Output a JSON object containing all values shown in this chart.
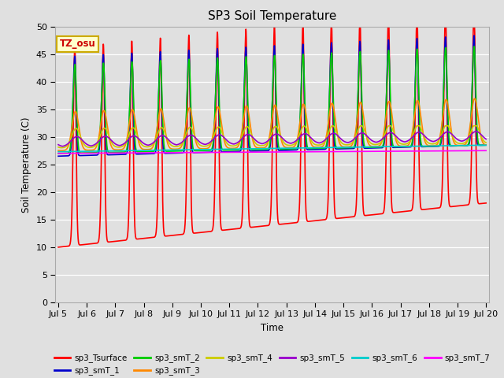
{
  "title": "SP3 Soil Temperature",
  "ylabel": "Soil Temperature (C)",
  "xlabel": "Time",
  "ylim": [
    0,
    50
  ],
  "bg_color": "#e0e0e0",
  "annotation_text": "TZ_osu",
  "annotation_bg": "#ffffcc",
  "annotation_border": "#ccaa00",
  "series": [
    {
      "name": "sp3_Tsurface",
      "color": "#ff0000"
    },
    {
      "name": "sp3_smT_1",
      "color": "#0000cc"
    },
    {
      "name": "sp3_smT_2",
      "color": "#00cc00"
    },
    {
      "name": "sp3_smT_3",
      "color": "#ff8800"
    },
    {
      "name": "sp3_smT_4",
      "color": "#cccc00"
    },
    {
      "name": "sp3_smT_5",
      "color": "#9900cc"
    },
    {
      "name": "sp3_smT_6",
      "color": "#00cccc"
    },
    {
      "name": "sp3_smT_7",
      "color": "#ff00ff"
    }
  ],
  "xtick_labels": [
    "Jul 5",
    "Jul 6",
    "Jul 7",
    "Jul 8",
    "Jul 9",
    "Jul 10",
    "Jul 11",
    "Jul 12",
    "Jul 13",
    "Jul 14",
    "Jul 15",
    "Jul 16",
    "Jul 17",
    "Jul 18",
    "Jul 19",
    "Jul 20"
  ],
  "n_days": 15,
  "points_per_day": 144
}
